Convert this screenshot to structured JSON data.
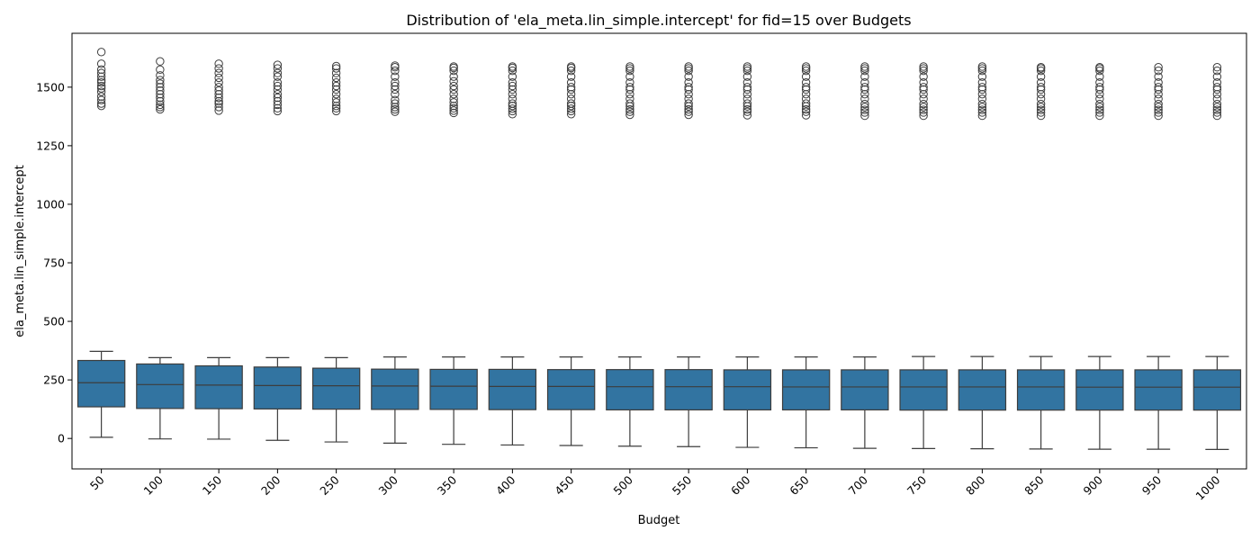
{
  "chart_data": {
    "type": "boxplot",
    "title": "Distribution of 'ela_meta.lin_simple.intercept' for fid=15 over Budgets",
    "xlabel": "Budget",
    "ylabel": "ela_meta.lin_simple.intercept",
    "ylim": [
      -130,
      1730
    ],
    "yticks": [
      0,
      250,
      500,
      750,
      1000,
      1250,
      1500
    ],
    "box_color": "#3274a1",
    "edge_color": "#3d3d3d",
    "categories": [
      "50",
      "100",
      "150",
      "200",
      "250",
      "300",
      "350",
      "400",
      "450",
      "500",
      "550",
      "600",
      "650",
      "700",
      "750",
      "800",
      "850",
      "900",
      "950",
      "1000"
    ],
    "boxes": [
      {
        "q1": 135,
        "median": 238,
        "q3": 333,
        "whislo": 5,
        "whishi": 372,
        "fliers": [
          1420,
          1430,
          1445,
          1460,
          1480,
          1495,
          1505,
          1520,
          1530,
          1545,
          1560,
          1575,
          1600,
          1650
        ]
      },
      {
        "q1": 128,
        "median": 230,
        "q3": 318,
        "whislo": -2,
        "whishi": 345,
        "fliers": [
          1405,
          1415,
          1425,
          1440,
          1455,
          1470,
          1485,
          1500,
          1515,
          1530,
          1550,
          1575,
          1610
        ]
      },
      {
        "q1": 127,
        "median": 228,
        "q3": 310,
        "whislo": -3,
        "whishi": 345,
        "fliers": [
          1400,
          1415,
          1430,
          1440,
          1455,
          1470,
          1485,
          1500,
          1520,
          1540,
          1560,
          1580,
          1600
        ]
      },
      {
        "q1": 126,
        "median": 226,
        "q3": 305,
        "whislo": -8,
        "whishi": 345,
        "fliers": [
          1398,
          1410,
          1425,
          1440,
          1455,
          1470,
          1490,
          1505,
          1520,
          1545,
          1560,
          1580,
          1595
        ]
      },
      {
        "q1": 125,
        "median": 225,
        "q3": 300,
        "whislo": -15,
        "whishi": 345,
        "fliers": [
          1398,
          1410,
          1420,
          1435,
          1450,
          1470,
          1490,
          1505,
          1520,
          1540,
          1560,
          1580,
          1590
        ]
      },
      {
        "q1": 124,
        "median": 224,
        "q3": 296,
        "whislo": -20,
        "whishi": 348,
        "fliers": [
          1395,
          1405,
          1415,
          1430,
          1445,
          1470,
          1490,
          1505,
          1520,
          1545,
          1570,
          1585,
          1592
        ]
      },
      {
        "q1": 124,
        "median": 223,
        "q3": 295,
        "whislo": -25,
        "whishi": 348,
        "fliers": [
          1390,
          1400,
          1410,
          1420,
          1435,
          1450,
          1470,
          1490,
          1505,
          1525,
          1545,
          1570,
          1582,
          1588
        ]
      },
      {
        "q1": 123,
        "median": 222,
        "q3": 295,
        "whislo": -28,
        "whishi": 348,
        "fliers": [
          1385,
          1398,
          1408,
          1420,
          1430,
          1450,
          1470,
          1490,
          1505,
          1520,
          1545,
          1570,
          1582,
          1588
        ]
      },
      {
        "q1": 123,
        "median": 222,
        "q3": 294,
        "whislo": -30,
        "whishi": 348,
        "fliers": [
          1385,
          1398,
          1408,
          1420,
          1430,
          1450,
          1470,
          1490,
          1500,
          1520,
          1545,
          1570,
          1582,
          1588
        ]
      },
      {
        "q1": 122,
        "median": 221,
        "q3": 294,
        "whislo": -33,
        "whishi": 348,
        "fliers": [
          1382,
          1395,
          1405,
          1418,
          1430,
          1450,
          1470,
          1490,
          1500,
          1520,
          1545,
          1570,
          1580,
          1588
        ]
      },
      {
        "q1": 122,
        "median": 221,
        "q3": 294,
        "whislo": -35,
        "whishi": 348,
        "fliers": [
          1382,
          1395,
          1405,
          1418,
          1430,
          1450,
          1470,
          1490,
          1500,
          1520,
          1545,
          1570,
          1580,
          1588
        ]
      },
      {
        "q1": 122,
        "median": 221,
        "q3": 293,
        "whislo": -38,
        "whishi": 348,
        "fliers": [
          1380,
          1395,
          1405,
          1418,
          1430,
          1450,
          1470,
          1490,
          1500,
          1520,
          1545,
          1570,
          1580,
          1588
        ]
      },
      {
        "q1": 122,
        "median": 220,
        "q3": 293,
        "whislo": -40,
        "whishi": 348,
        "fliers": [
          1380,
          1395,
          1405,
          1418,
          1430,
          1450,
          1470,
          1490,
          1500,
          1520,
          1545,
          1570,
          1580,
          1588
        ]
      },
      {
        "q1": 122,
        "median": 220,
        "q3": 293,
        "whislo": -42,
        "whishi": 348,
        "fliers": [
          1378,
          1392,
          1403,
          1415,
          1428,
          1450,
          1470,
          1490,
          1500,
          1520,
          1545,
          1570,
          1580,
          1588
        ]
      },
      {
        "q1": 121,
        "median": 220,
        "q3": 293,
        "whislo": -43,
        "whishi": 350,
        "fliers": [
          1378,
          1392,
          1403,
          1415,
          1428,
          1450,
          1470,
          1490,
          1500,
          1520,
          1545,
          1570,
          1580,
          1588
        ]
      },
      {
        "q1": 121,
        "median": 220,
        "q3": 293,
        "whislo": -44,
        "whishi": 350,
        "fliers": [
          1378,
          1392,
          1403,
          1415,
          1428,
          1450,
          1470,
          1490,
          1500,
          1520,
          1545,
          1570,
          1580,
          1588
        ]
      },
      {
        "q1": 121,
        "median": 220,
        "q3": 293,
        "whislo": -45,
        "whishi": 350,
        "fliers": [
          1378,
          1392,
          1403,
          1415,
          1428,
          1450,
          1470,
          1490,
          1500,
          1520,
          1545,
          1570,
          1580,
          1585
        ]
      },
      {
        "q1": 121,
        "median": 219,
        "q3": 293,
        "whislo": -46,
        "whishi": 350,
        "fliers": [
          1378,
          1392,
          1403,
          1415,
          1428,
          1450,
          1470,
          1490,
          1500,
          1520,
          1545,
          1570,
          1580,
          1585
        ]
      },
      {
        "q1": 121,
        "median": 219,
        "q3": 293,
        "whislo": -46,
        "whishi": 350,
        "fliers": [
          1378,
          1392,
          1403,
          1415,
          1428,
          1450,
          1470,
          1490,
          1500,
          1520,
          1545,
          1570,
          1585
        ]
      },
      {
        "q1": 121,
        "median": 219,
        "q3": 293,
        "whislo": -47,
        "whishi": 350,
        "fliers": [
          1378,
          1392,
          1403,
          1415,
          1428,
          1450,
          1470,
          1490,
          1500,
          1520,
          1545,
          1570,
          1585
        ]
      }
    ]
  }
}
